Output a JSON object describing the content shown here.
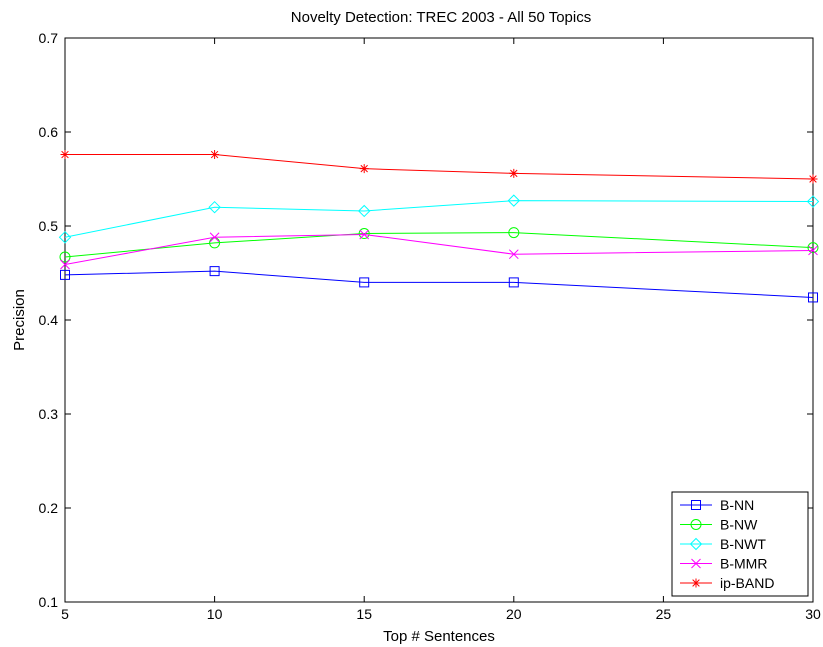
{
  "chart_data": {
    "type": "line",
    "title": "Novelty Detection: TREC 2003 - All 50 Topics",
    "xlabel": "Top # Sentences",
    "ylabel": "Precision",
    "x": [
      5,
      10,
      15,
      20,
      30
    ],
    "xlim": [
      5,
      30
    ],
    "ylim": [
      0.1,
      0.7
    ],
    "xticks": [
      "5",
      "10",
      "15",
      "20",
      "25",
      "30"
    ],
    "yticks": [
      "0.1",
      "0.2",
      "0.3",
      "0.4",
      "0.5",
      "0.6",
      "0.7"
    ],
    "grid": false,
    "legend_position": "bottom-right",
    "series": [
      {
        "name": "B-NN",
        "color": "#0000ff",
        "marker": "square",
        "values": [
          0.448,
          0.452,
          0.44,
          0.44,
          0.424
        ]
      },
      {
        "name": "B-NW",
        "color": "#00ff00",
        "marker": "circle",
        "values": [
          0.467,
          0.482,
          0.492,
          0.493,
          0.477
        ]
      },
      {
        "name": "B-NWT",
        "color": "#00ffff",
        "marker": "diamond",
        "values": [
          0.488,
          0.52,
          0.516,
          0.527,
          0.526
        ]
      },
      {
        "name": "B-MMR",
        "color": "#ff00ff",
        "marker": "x",
        "values": [
          0.459,
          0.488,
          0.491,
          0.47,
          0.474
        ]
      },
      {
        "name": "ip-BAND",
        "color": "#ff0000",
        "marker": "star",
        "values": [
          0.576,
          0.576,
          0.561,
          0.556,
          0.55
        ]
      }
    ]
  }
}
